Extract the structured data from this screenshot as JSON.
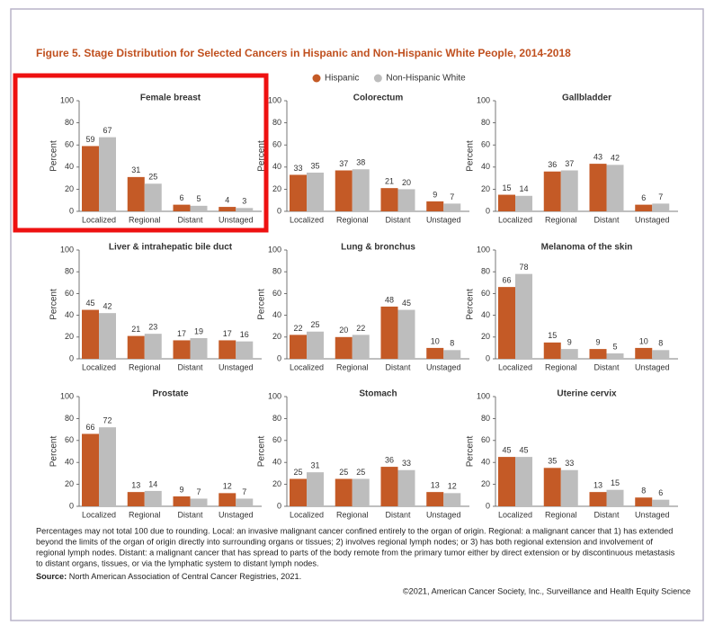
{
  "figure": {
    "title": "Figure 5. Stage Distribution for Selected Cancers in Hispanic and Non-Hispanic White People, 2014-2018",
    "footnote": [
      "Percentages may not total 100 due to rounding. Local: an invasive malignant cancer confined entirely to the organ of origin. Regional: a malignant cancer that 1) has extended",
      "beyond the limits of the organ of origin directly into surrounding organs or tissues; 2) involves regional lymph nodes; or 3) has both regional extension and involvement of",
      "regional lymph nodes. Distant: a malignant cancer that has spread to parts of the body remote from the primary tumor either by direct extension or by discontinuous metastasis",
      "to distant organs, tissues, or via the lymphatic system to distant lymph nodes."
    ],
    "source_label": "Source:",
    "source_text": "North American Association of Central Cancer Registries, 2021.",
    "copyright": "©2021, American Cancer Society, Inc., Surveillance and Health Equity Science"
  },
  "chart_data": [
    {
      "type": "bar",
      "title": "Female breast",
      "ylabel": "Percent",
      "categories": [
        "Localized",
        "Regional",
        "Distant",
        "Unstaged"
      ],
      "ylim": [
        0,
        100
      ],
      "yticks": [
        0,
        20,
        40,
        60,
        80,
        100
      ],
      "series": [
        {
          "name": "Hispanic",
          "color": "#c45a26",
          "values": [
            59,
            31,
            6,
            4
          ]
        },
        {
          "name": "Non-Hispanic White",
          "color": "#bdbdbd",
          "values": [
            67,
            25,
            5,
            3
          ]
        }
      ]
    },
    {
      "type": "bar",
      "title": "Colorectum",
      "ylabel": "Percent",
      "categories": [
        "Localized",
        "Regional",
        "Distant",
        "Unstaged"
      ],
      "ylim": [
        0,
        100
      ],
      "yticks": [
        0,
        20,
        40,
        60,
        80,
        100
      ],
      "series": [
        {
          "name": "Hispanic",
          "color": "#c45a26",
          "values": [
            33,
            37,
            21,
            9
          ]
        },
        {
          "name": "Non-Hispanic White",
          "color": "#bdbdbd",
          "values": [
            35,
            38,
            20,
            7
          ]
        }
      ]
    },
    {
      "type": "bar",
      "title": "Gallbladder",
      "ylabel": "Percent",
      "categories": [
        "Localized",
        "Regional",
        "Distant",
        "Unstaged"
      ],
      "ylim": [
        0,
        100
      ],
      "yticks": [
        0,
        20,
        40,
        60,
        80,
        100
      ],
      "series": [
        {
          "name": "Hispanic",
          "color": "#c45a26",
          "values": [
            15,
            36,
            43,
            6
          ]
        },
        {
          "name": "Non-Hispanic White",
          "color": "#bdbdbd",
          "values": [
            14,
            37,
            42,
            7
          ]
        }
      ]
    },
    {
      "type": "bar",
      "title": "Liver & intrahepatic bile duct",
      "ylabel": "Percent",
      "categories": [
        "Localized",
        "Regional",
        "Distant",
        "Unstaged"
      ],
      "ylim": [
        0,
        100
      ],
      "yticks": [
        0,
        20,
        40,
        60,
        80,
        100
      ],
      "series": [
        {
          "name": "Hispanic",
          "color": "#c45a26",
          "values": [
            45,
            21,
            17,
            17
          ]
        },
        {
          "name": "Non-Hispanic White",
          "color": "#bdbdbd",
          "values": [
            42,
            23,
            19,
            16
          ]
        }
      ]
    },
    {
      "type": "bar",
      "title": "Lung & bronchus",
      "ylabel": "Percent",
      "categories": [
        "Localized",
        "Regional",
        "Distant",
        "Unstaged"
      ],
      "ylim": [
        0,
        100
      ],
      "yticks": [
        0,
        20,
        40,
        60,
        80,
        100
      ],
      "series": [
        {
          "name": "Hispanic",
          "color": "#c45a26",
          "values": [
            22,
            20,
            48,
            10
          ]
        },
        {
          "name": "Non-Hispanic White",
          "color": "#bdbdbd",
          "values": [
            25,
            22,
            45,
            8
          ]
        }
      ]
    },
    {
      "type": "bar",
      "title": "Melanoma of the skin",
      "ylabel": "Percent",
      "categories": [
        "Localized",
        "Regional",
        "Distant",
        "Unstaged"
      ],
      "ylim": [
        0,
        100
      ],
      "yticks": [
        0,
        20,
        40,
        60,
        80,
        100
      ],
      "series": [
        {
          "name": "Hispanic",
          "color": "#c45a26",
          "values": [
            66,
            15,
            9,
            10
          ]
        },
        {
          "name": "Non-Hispanic White",
          "color": "#bdbdbd",
          "values": [
            78,
            9,
            5,
            8
          ]
        }
      ]
    },
    {
      "type": "bar",
      "title": "Prostate",
      "ylabel": "Percent",
      "categories": [
        "Localized",
        "Regional",
        "Distant",
        "Unstaged"
      ],
      "ylim": [
        0,
        100
      ],
      "yticks": [
        0,
        20,
        40,
        60,
        80,
        100
      ],
      "series": [
        {
          "name": "Hispanic",
          "color": "#c45a26",
          "values": [
            66,
            13,
            9,
            12
          ]
        },
        {
          "name": "Non-Hispanic White",
          "color": "#bdbdbd",
          "values": [
            72,
            14,
            7,
            7
          ]
        }
      ]
    },
    {
      "type": "bar",
      "title": "Stomach",
      "ylabel": "Percent",
      "categories": [
        "Localized",
        "Regional",
        "Distant",
        "Unstaged"
      ],
      "ylim": [
        0,
        100
      ],
      "yticks": [
        0,
        20,
        40,
        60,
        80,
        100
      ],
      "series": [
        {
          "name": "Hispanic",
          "color": "#c45a26",
          "values": [
            25,
            25,
            36,
            13
          ]
        },
        {
          "name": "Non-Hispanic White",
          "color": "#bdbdbd",
          "values": [
            31,
            25,
            33,
            12
          ]
        }
      ]
    },
    {
      "type": "bar",
      "title": "Uterine cervix",
      "ylabel": "Percent",
      "categories": [
        "Localized",
        "Regional",
        "Distant",
        "Unstaged"
      ],
      "ylim": [
        0,
        100
      ],
      "yticks": [
        0,
        20,
        40,
        60,
        80,
        100
      ],
      "series": [
        {
          "name": "Hispanic",
          "color": "#c45a26",
          "values": [
            45,
            35,
            13,
            8
          ]
        },
        {
          "name": "Non-Hispanic White",
          "color": "#bdbdbd",
          "values": [
            45,
            33,
            15,
            6
          ]
        }
      ]
    }
  ]
}
